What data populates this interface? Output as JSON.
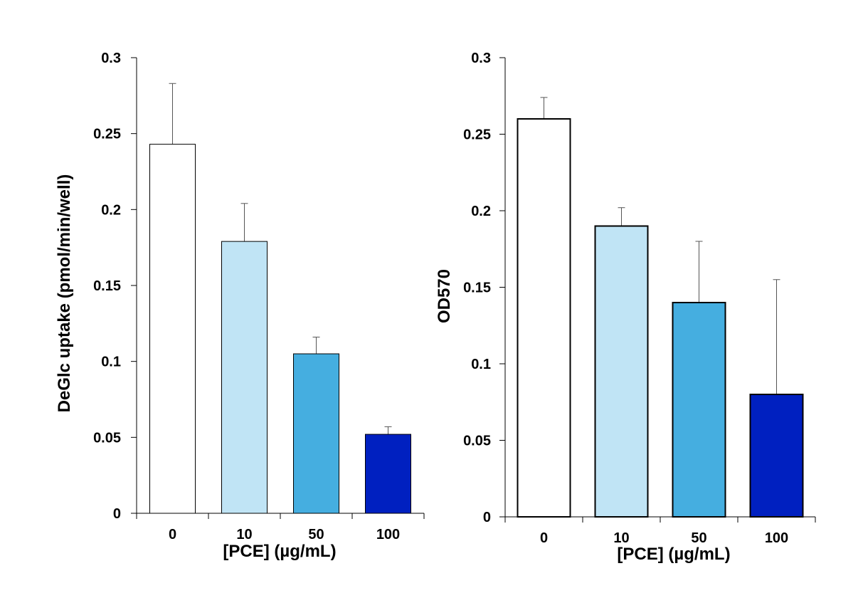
{
  "chart_data": [
    {
      "type": "bar",
      "title": "",
      "ylabel": "DeGlc uptake (pmol/min/well)",
      "xlabel": "[PCE]  (µg/mL)",
      "categories": [
        "0",
        "10",
        "50",
        "100"
      ],
      "values": [
        0.243,
        0.179,
        0.105,
        0.052
      ],
      "error_plus": [
        0.04,
        0.025,
        0.011,
        0.005
      ],
      "bar_colors": [
        "#ffffff",
        "#c0e4f5",
        "#45aee0",
        "#0020c0"
      ],
      "ylim": [
        0,
        0.3
      ],
      "yticks": [
        0,
        0.05,
        0.1,
        0.15,
        0.2,
        0.25,
        0.3
      ],
      "ytick_labels": [
        "0",
        "0.05",
        "0.1",
        "0.15",
        "0.2",
        "0.25",
        "0.3"
      ],
      "grid": false,
      "legend": "none"
    },
    {
      "type": "bar",
      "title": "",
      "ylabel": "OD570",
      "xlabel": "[PCE]  (µg/mL)",
      "categories": [
        "0",
        "10",
        "50",
        "100"
      ],
      "values": [
        0.26,
        0.19,
        0.14,
        0.08
      ],
      "error_plus": [
        0.014,
        0.012,
        0.04,
        0.075
      ],
      "bar_colors": [
        "#ffffff",
        "#c0e4f5",
        "#45aee0",
        "#0020c0"
      ],
      "ylim": [
        0,
        0.3
      ],
      "yticks": [
        0,
        0.05,
        0.1,
        0.15,
        0.2,
        0.25,
        0.3
      ],
      "ytick_labels": [
        "0",
        "0.05",
        "0.1",
        "0.15",
        "0.2",
        "0.25",
        "0.3"
      ],
      "grid": false,
      "legend": "none"
    }
  ]
}
